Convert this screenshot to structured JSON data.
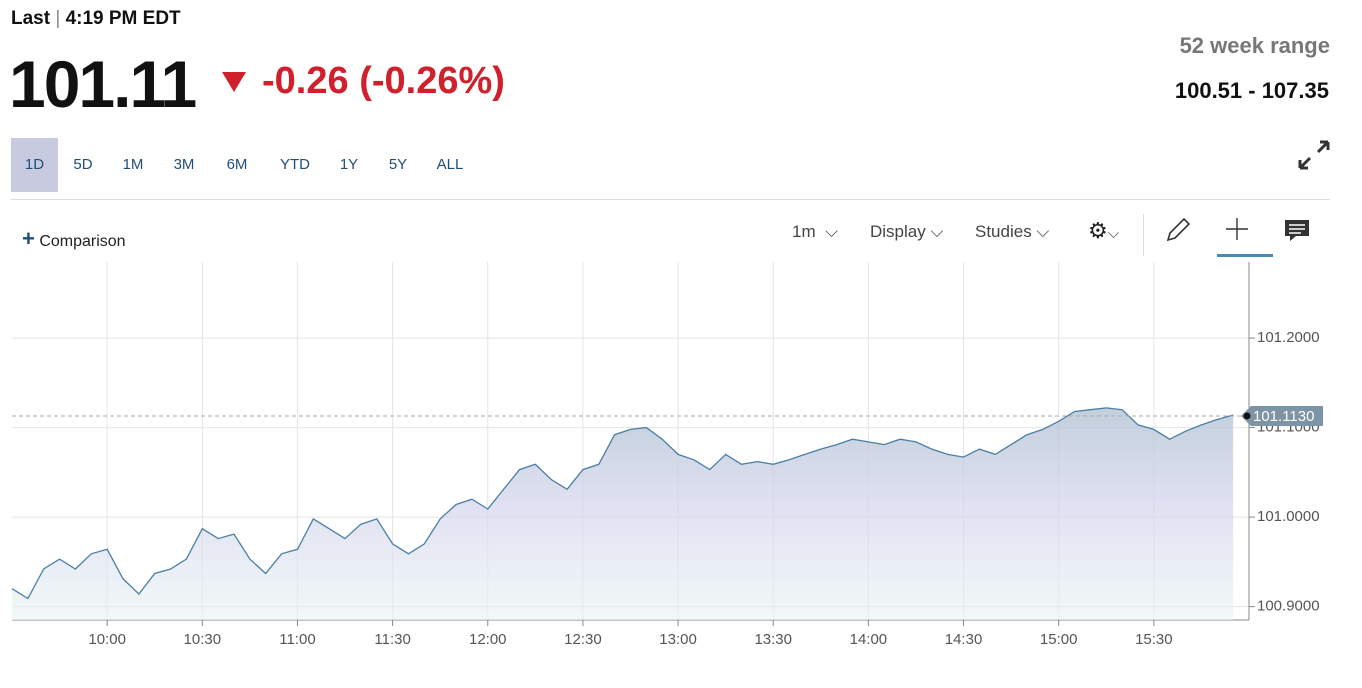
{
  "header": {
    "last_label": "Last",
    "time": "4:19 PM EDT",
    "price": "101.11",
    "change": "-0.26",
    "change_pct": "(-0.26%)",
    "range_label": "52 week range",
    "range_value": "100.51 - 107.35"
  },
  "tabs": [
    "1D",
    "5D",
    "1M",
    "3M",
    "6M",
    "YTD",
    "1Y",
    "5Y",
    "ALL"
  ],
  "toolbar": {
    "comparison": "Comparison",
    "interval": "1m",
    "display": "Display",
    "studies": "Studies"
  },
  "chart_data": {
    "type": "area",
    "x": [
      "09:30",
      "09:35",
      "09:40",
      "09:45",
      "09:50",
      "09:55",
      "10:00",
      "10:05",
      "10:10",
      "10:15",
      "10:20",
      "10:25",
      "10:30",
      "10:35",
      "10:40",
      "10:45",
      "10:50",
      "10:55",
      "11:00",
      "11:05",
      "11:10",
      "11:15",
      "11:20",
      "11:25",
      "11:30",
      "11:35",
      "11:40",
      "11:45",
      "11:50",
      "11:55",
      "12:00",
      "12:05",
      "12:10",
      "12:15",
      "12:20",
      "12:25",
      "12:30",
      "12:35",
      "12:40",
      "12:45",
      "12:50",
      "12:55",
      "13:00",
      "13:05",
      "13:10",
      "13:15",
      "13:20",
      "13:25",
      "13:30",
      "13:35",
      "13:40",
      "13:45",
      "13:50",
      "13:55",
      "14:00",
      "14:05",
      "14:10",
      "14:15",
      "14:20",
      "14:25",
      "14:30",
      "14:35",
      "14:40",
      "14:45",
      "14:50",
      "14:55",
      "15:00",
      "15:05",
      "15:10",
      "15:15",
      "15:20",
      "15:25",
      "15:30",
      "15:35",
      "15:40",
      "15:45",
      "15:50",
      "15:55"
    ],
    "values": [
      100.92,
      100.909,
      100.942,
      100.953,
      100.942,
      100.959,
      100.964,
      100.931,
      100.914,
      100.937,
      100.942,
      100.953,
      100.987,
      100.976,
      100.981,
      100.953,
      100.937,
      100.959,
      100.964,
      100.998,
      100.987,
      100.976,
      100.992,
      100.998,
      100.97,
      100.959,
      100.97,
      100.998,
      101.014,
      101.02,
      101.009,
      101.031,
      101.053,
      101.059,
      101.042,
      101.031,
      101.053,
      101.059,
      101.092,
      101.098,
      101.1,
      101.087,
      101.07,
      101.064,
      101.053,
      101.07,
      101.059,
      101.062,
      101.059,
      101.064,
      101.07,
      101.076,
      101.081,
      101.087,
      101.084,
      101.081,
      101.087,
      101.084,
      101.076,
      101.07,
      101.067,
      101.076,
      101.07,
      101.081,
      101.092,
      101.098,
      101.107,
      101.118,
      101.12,
      101.122,
      101.12,
      101.103,
      101.098,
      101.087,
      101.096,
      101.103,
      101.109,
      101.114
    ],
    "color": "#4a7fa5",
    "xlim": [
      "09:30",
      "16:00"
    ],
    "xticks": [
      "10:00",
      "10:30",
      "11:00",
      "11:30",
      "12:00",
      "12:30",
      "13:00",
      "13:30",
      "14:00",
      "14:30",
      "15:00",
      "15:30"
    ],
    "ylim": [
      100.885,
      101.285
    ],
    "yticks": [
      {
        "value": 100.9,
        "label": "100.9000"
      },
      {
        "value": 101.0,
        "label": "101.0000"
      },
      {
        "value": 101.1,
        "label": "101.1000"
      },
      {
        "value": 101.2,
        "label": "101.2000"
      }
    ],
    "last_value": {
      "value": 101.113,
      "label": "101.1130"
    },
    "grid": true
  }
}
